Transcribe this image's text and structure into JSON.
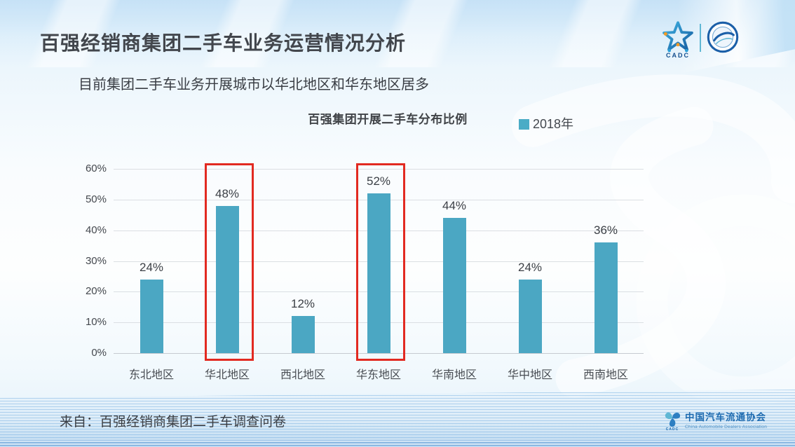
{
  "slide": {
    "title": "百强经销商集团二手车业务运营情况分析",
    "subtitle": "目前集团二手车业务开展城市以华北地区和华东地区居多",
    "source": "来自：百强经销商集团二手车调查问卷"
  },
  "header_logos": {
    "cadc_label": "CADC"
  },
  "footer_logo": {
    "name_cn": "中国汽车流通协会",
    "name_en": "China Automobile Dealers Association",
    "badge": "CADC"
  },
  "chart_data": {
    "type": "bar",
    "title": "百强集团开展二手车分布比例",
    "legend": [
      {
        "label": "2018年",
        "color": "#4BACC6"
      }
    ],
    "categories": [
      "东北地区",
      "华北地区",
      "西北地区",
      "华东地区",
      "华南地区",
      "华中地区",
      "西南地区"
    ],
    "values": [
      24,
      48,
      12,
      52,
      44,
      24,
      36
    ],
    "value_labels": [
      "24%",
      "48%",
      "12%",
      "52%",
      "44%",
      "24%",
      "36%"
    ],
    "highlighted_indices": [
      1,
      3
    ],
    "ylim": [
      0,
      60
    ],
    "yticks": [
      "0%",
      "10%",
      "20%",
      "30%",
      "40%",
      "50%",
      "60%"
    ],
    "grid": true,
    "legend_position": "top-right",
    "bar_color": "#4BA7C3",
    "highlight_color": "#E22A21"
  }
}
